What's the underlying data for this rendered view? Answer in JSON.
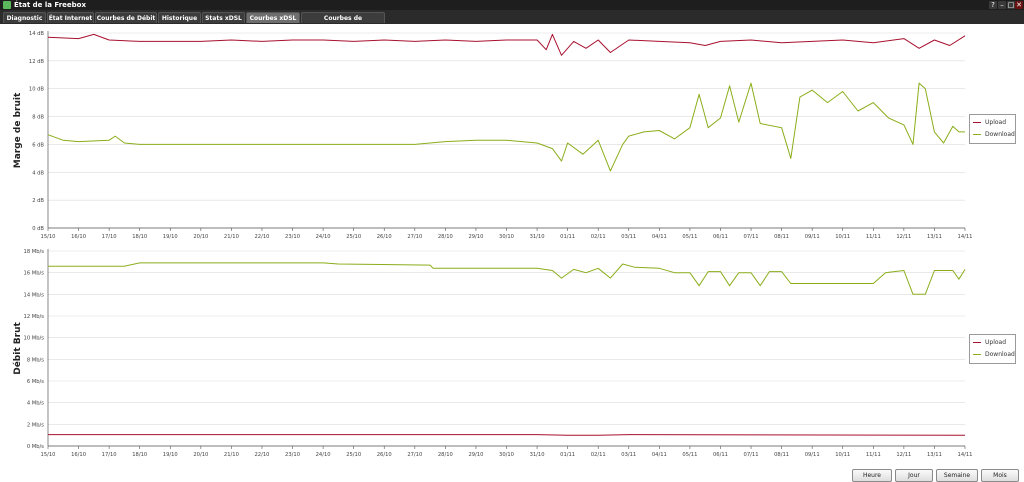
{
  "window": {
    "title": "État de la Freebox",
    "controls": [
      "?",
      "–",
      "□",
      "✕"
    ]
  },
  "tabs": [
    {
      "label": "Diagnostic",
      "active": false
    },
    {
      "label": "État Internet",
      "active": false
    },
    {
      "label": "Courbes de Débit",
      "active": false
    },
    {
      "label": "Historique",
      "active": false
    },
    {
      "label": "Stats xDSL",
      "active": false
    },
    {
      "label": "Courbes xDSL",
      "active": true
    },
    {
      "label": "Courbes de température",
      "active": false
    }
  ],
  "colors": {
    "upload": "#a8102e",
    "download": "#8aad1a",
    "grid": "#dcdcdc",
    "axis": "#555555"
  },
  "x_ticks": [
    "15/10",
    "16/10",
    "17/10",
    "18/10",
    "19/10",
    "20/10",
    "21/10",
    "22/10",
    "23/10",
    "24/10",
    "25/10",
    "26/10",
    "27/10",
    "28/10",
    "29/10",
    "30/10",
    "31/10",
    "01/11",
    "02/11",
    "03/11",
    "04/11",
    "05/11",
    "06/11",
    "07/11",
    "08/11",
    "09/11",
    "10/11",
    "11/11",
    "12/11",
    "13/11",
    "14/11"
  ],
  "charts": {
    "snr": {
      "ylabel": "Marge de bruit",
      "ytick_labels": [
        "0 dB",
        "2 dB",
        "4 dB",
        "6 dB",
        "8 dB",
        "10 dB",
        "12 dB",
        "14 dB"
      ],
      "legend": [
        "Upload",
        "Download"
      ]
    },
    "rate": {
      "ylabel": "Débit Brut",
      "ytick_labels": [
        "0 Mb/s",
        "2 Mb/s",
        "4 Mb/s",
        "6 Mb/s",
        "8 Mb/s",
        "10 Mb/s",
        "12 Mb/s",
        "14 Mb/s",
        "16 Mb/s",
        "18 Mb/s"
      ],
      "legend": [
        "Upload",
        "Download"
      ]
    }
  },
  "chart_data": [
    {
      "type": "line",
      "ylabel": "Marge de bruit",
      "ylim": [
        0,
        14
      ],
      "x_unit": "date 15/10 – 14/11",
      "series": [
        {
          "name": "Upload",
          "color": "#a8102e",
          "points": [
            [
              0,
              13.7
            ],
            [
              1,
              13.6
            ],
            [
              1.5,
              13.9
            ],
            [
              2,
              13.5
            ],
            [
              3,
              13.4
            ],
            [
              4,
              13.4
            ],
            [
              5,
              13.4
            ],
            [
              6,
              13.5
            ],
            [
              7,
              13.4
            ],
            [
              8,
              13.5
            ],
            [
              9,
              13.5
            ],
            [
              10,
              13.4
            ],
            [
              11,
              13.5
            ],
            [
              12,
              13.4
            ],
            [
              13,
              13.5
            ],
            [
              14,
              13.4
            ],
            [
              15,
              13.5
            ],
            [
              16,
              13.5
            ],
            [
              16.3,
              12.8
            ],
            [
              16.5,
              13.9
            ],
            [
              16.8,
              12.4
            ],
            [
              17.2,
              13.4
            ],
            [
              17.6,
              12.9
            ],
            [
              18,
              13.5
            ],
            [
              18.4,
              12.6
            ],
            [
              19,
              13.5
            ],
            [
              20,
              13.4
            ],
            [
              21,
              13.3
            ],
            [
              21.5,
              13.1
            ],
            [
              22,
              13.4
            ],
            [
              23,
              13.5
            ],
            [
              24,
              13.3
            ],
            [
              25,
              13.4
            ],
            [
              26,
              13.5
            ],
            [
              27,
              13.3
            ],
            [
              28,
              13.6
            ],
            [
              28.5,
              12.9
            ],
            [
              29,
              13.5
            ],
            [
              29.5,
              13.1
            ],
            [
              30,
              13.8
            ]
          ]
        },
        {
          "name": "Download",
          "color": "#8aad1a",
          "points": [
            [
              0,
              6.7
            ],
            [
              0.5,
              6.3
            ],
            [
              1,
              6.2
            ],
            [
              2,
              6.3
            ],
            [
              2.2,
              6.6
            ],
            [
              2.5,
              6.1
            ],
            [
              3,
              6.0
            ],
            [
              4,
              6.0
            ],
            [
              5,
              6.0
            ],
            [
              6,
              6.0
            ],
            [
              7,
              6.0
            ],
            [
              8,
              6.0
            ],
            [
              9,
              6.0
            ],
            [
              10,
              6.0
            ],
            [
              11,
              6.0
            ],
            [
              12,
              6.0
            ],
            [
              13,
              6.2
            ],
            [
              14,
              6.3
            ],
            [
              15,
              6.3
            ],
            [
              16,
              6.1
            ],
            [
              16.5,
              5.7
            ],
            [
              16.8,
              4.8
            ],
            [
              17,
              6.1
            ],
            [
              17.5,
              5.3
            ],
            [
              18,
              6.3
            ],
            [
              18.4,
              4.1
            ],
            [
              18.8,
              6.0
            ],
            [
              19,
              6.6
            ],
            [
              19.5,
              6.9
            ],
            [
              20,
              7.0
            ],
            [
              20.5,
              6.4
            ],
            [
              21,
              7.2
            ],
            [
              21.3,
              9.6
            ],
            [
              21.6,
              7.2
            ],
            [
              22,
              7.9
            ],
            [
              22.3,
              10.2
            ],
            [
              22.6,
              7.6
            ],
            [
              23,
              10.4
            ],
            [
              23.3,
              7.5
            ],
            [
              24,
              7.2
            ],
            [
              24.3,
              5.0
            ],
            [
              24.6,
              9.4
            ],
            [
              25,
              9.9
            ],
            [
              25.5,
              9.0
            ],
            [
              26,
              9.8
            ],
            [
              26.5,
              8.4
            ],
            [
              27,
              9.0
            ],
            [
              27.5,
              7.9
            ],
            [
              28,
              7.4
            ],
            [
              28.3,
              6.0
            ],
            [
              28.5,
              10.4
            ],
            [
              28.7,
              10.0
            ],
            [
              29,
              6.9
            ],
            [
              29.3,
              6.1
            ],
            [
              29.6,
              7.3
            ],
            [
              29.8,
              6.9
            ],
            [
              30,
              6.9
            ]
          ]
        }
      ]
    },
    {
      "type": "line",
      "ylabel": "Débit Brut",
      "ylim": [
        0,
        18
      ],
      "x_unit": "date 15/10 – 14/11",
      "series": [
        {
          "name": "Upload",
          "color": "#a8102e",
          "points": [
            [
              0,
              1.05
            ],
            [
              10,
              1.05
            ],
            [
              16,
              1.05
            ],
            [
              17,
              1.0
            ],
            [
              18,
              1.0
            ],
            [
              19,
              1.05
            ],
            [
              30,
              1.0
            ]
          ]
        },
        {
          "name": "Download",
          "color": "#8aad1a",
          "points": [
            [
              0,
              16.6
            ],
            [
              2.5,
              16.6
            ],
            [
              3,
              16.9
            ],
            [
              9,
              16.9
            ],
            [
              9.5,
              16.8
            ],
            [
              12.5,
              16.7
            ],
            [
              12.6,
              16.4
            ],
            [
              16,
              16.4
            ],
            [
              16.5,
              16.2
            ],
            [
              16.8,
              15.5
            ],
            [
              17.2,
              16.3
            ],
            [
              17.6,
              16.0
            ],
            [
              18,
              16.4
            ],
            [
              18.4,
              15.5
            ],
            [
              18.8,
              16.8
            ],
            [
              19.2,
              16.5
            ],
            [
              20,
              16.4
            ],
            [
              20.5,
              16.0
            ],
            [
              21,
              16.0
            ],
            [
              21.3,
              14.8
            ],
            [
              21.6,
              16.1
            ],
            [
              22,
              16.1
            ],
            [
              22.3,
              14.8
            ],
            [
              22.6,
              16.0
            ],
            [
              23,
              16.0
            ],
            [
              23.3,
              14.8
            ],
            [
              23.6,
              16.1
            ],
            [
              24,
              16.1
            ],
            [
              24.3,
              15.0
            ],
            [
              27,
              15.0
            ],
            [
              27.4,
              16.0
            ],
            [
              28,
              16.2
            ],
            [
              28.3,
              14.0
            ],
            [
              28.7,
              14.0
            ],
            [
              29,
              16.2
            ],
            [
              29.6,
              16.2
            ],
            [
              29.8,
              15.4
            ],
            [
              30,
              16.3
            ]
          ]
        }
      ]
    }
  ],
  "buttons": [
    "Heure",
    "Jour",
    "Semaine",
    "Mois"
  ]
}
